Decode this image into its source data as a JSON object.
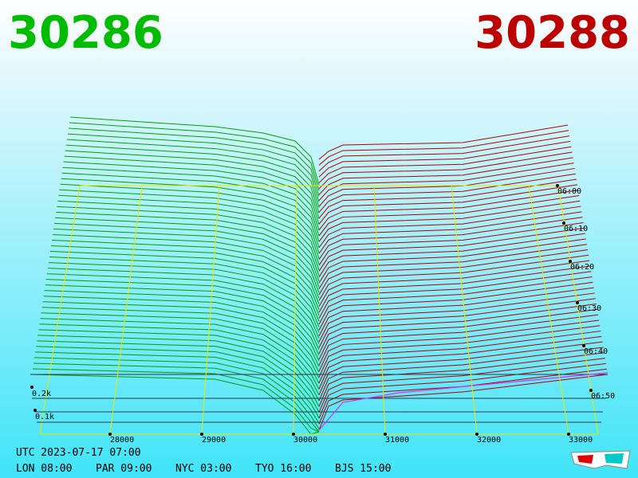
{
  "header": {
    "bid": "30286",
    "ask": "30288"
  },
  "price_axis": [
    "28000",
    "29000",
    "30000",
    "31000",
    "32000",
    "33000"
  ],
  "time_axis": [
    "06:00",
    "06:10",
    "06:20",
    "06:30",
    "06:40",
    "06:50"
  ],
  "volume_axis": [
    "0.2k",
    "0.1k"
  ],
  "footer": {
    "utc": "UTC 2023-07-17 07:00",
    "clocks": [
      "LON 08:00",
      "PAR 09:00",
      "NYC 03:00",
      "TYO 16:00",
      "BJS 15:00"
    ]
  }
}
